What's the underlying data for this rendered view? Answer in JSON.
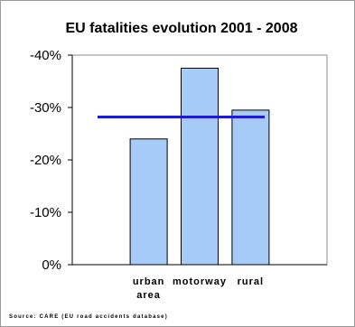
{
  "chart_data": {
    "type": "bar",
    "title": "EU fatalities evolution 2001 - 2008",
    "categories": [
      "urban area",
      "motorway",
      "rural"
    ],
    "category_lines": [
      [
        "urban",
        "area"
      ],
      [
        "motorway"
      ],
      [
        "rural"
      ]
    ],
    "values": [
      -24,
      -37.5,
      -29.5
    ],
    "reference_line": {
      "value": -28.2
    },
    "y_ticks": [
      0,
      -10,
      -20,
      -30,
      -40
    ],
    "y_tick_labels": [
      "0%",
      "-10%",
      "-20%",
      "-30%",
      "-40%"
    ],
    "ylim": [
      0,
      -40
    ],
    "grid": false,
    "legend": "none",
    "bar_color": "#a6cbf6",
    "bar_edge_color": "#000000",
    "line_color": "#1b1bd9"
  },
  "source_note": "Source: CARE (EU road accidents database)"
}
